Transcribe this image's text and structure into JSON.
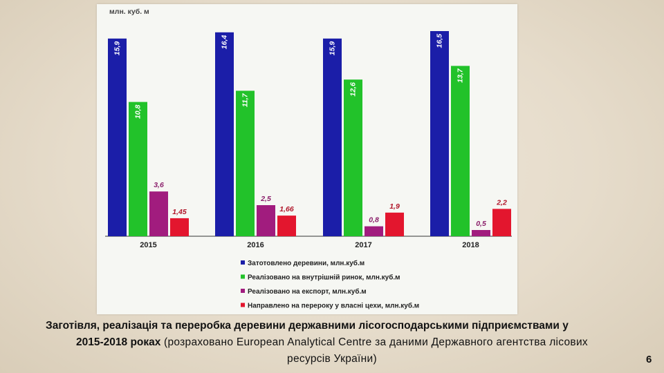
{
  "chart_data": {
    "type": "bar",
    "unit_label": "млн. куб. м",
    "categories": [
      "2015",
      "2016",
      "2017",
      "2018"
    ],
    "series": [
      {
        "name": "Затотовлено деревини, млн.куб.м",
        "values": [
          15.9,
          16.4,
          15.9,
          16.5
        ],
        "labels": [
          "15,9",
          "16,4",
          "15,9",
          "16,5"
        ],
        "color": "#1b1ea8"
      },
      {
        "name": "Реалізовано на внутрішній ринок, млн.куб.м",
        "values": [
          10.8,
          11.7,
          12.6,
          13.7
        ],
        "labels": [
          "10,8",
          "11,7",
          "12,6",
          "13,7"
        ],
        "color": "#22c22a"
      },
      {
        "name": "Реалізовано на експорт, млн.куб.м",
        "values": [
          3.6,
          2.5,
          0.8,
          0.5
        ],
        "labels": [
          "3,6",
          "2,5",
          "0,8",
          "0,5"
        ],
        "color": "#a11c7e"
      },
      {
        "name": "Направлено на перероку у власні цехи, млн.куб.м",
        "values": [
          1.45,
          1.66,
          1.9,
          2.2
        ],
        "labels": [
          "1,45",
          "1,66",
          "1,9",
          "2,2"
        ],
        "color": "#e3162e"
      }
    ],
    "ylim": [
      0,
      18
    ],
    "grid": false,
    "legend_position": "bottom"
  },
  "caption": {
    "line1": "Заготівля, реалізація та переробка деревини державними лісогосподарськими підприємствами у",
    "line2_bold": "2015-2018 роках",
    "line2_rest": " (розраховано European Analytical Centre за даними Державного агентства лісових",
    "line3": "ресурсів України)"
  },
  "page_number": "6"
}
